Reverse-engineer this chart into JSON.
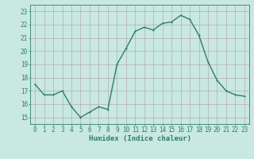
{
  "x": [
    0,
    1,
    2,
    3,
    4,
    5,
    6,
    7,
    8,
    9,
    10,
    11,
    12,
    13,
    14,
    15,
    16,
    17,
    18,
    19,
    20,
    21,
    22,
    23
  ],
  "y": [
    17.5,
    16.7,
    16.7,
    17.0,
    15.8,
    15.0,
    15.4,
    15.8,
    15.6,
    19.0,
    20.2,
    21.5,
    21.8,
    21.6,
    22.1,
    22.2,
    22.7,
    22.4,
    21.2,
    19.2,
    17.8,
    17.0,
    16.7,
    16.6
  ],
  "line_color": "#2e7d6e",
  "marker_color": "#2e7d6e",
  "bg_color": "#c8e8e0",
  "grid_color": "#b0a0a8",
  "xlabel": "Humidex (Indice chaleur)",
  "ylabel_ticks": [
    15,
    16,
    17,
    18,
    19,
    20,
    21,
    22,
    23
  ],
  "xlabel_ticks": [
    0,
    1,
    2,
    3,
    4,
    5,
    6,
    7,
    8,
    9,
    10,
    11,
    12,
    13,
    14,
    15,
    16,
    17,
    18,
    19,
    20,
    21,
    22,
    23
  ],
  "ylim": [
    14.5,
    23.5
  ],
  "xlim": [
    -0.5,
    23.5
  ],
  "tick_color": "#2e7d6e",
  "text_color": "#2e7d6e",
  "font_size_label": 6.5,
  "font_size_tick": 5.5,
  "linewidth": 1.0,
  "markersize": 2.0
}
